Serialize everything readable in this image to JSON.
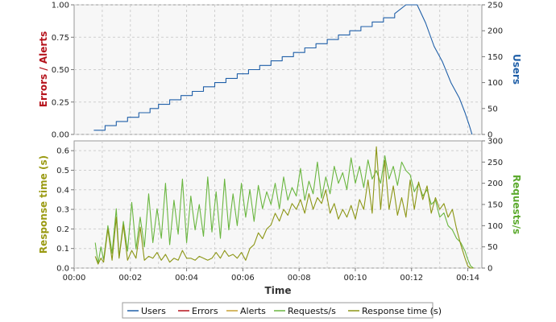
{
  "colors": {
    "users": "#1f5fa8",
    "errors": "#b5121b",
    "alerts": "#c8a032",
    "requests": "#6ab640",
    "response_time": "#8c9616",
    "grid": "#cfcfcf",
    "plot_bg": "#f7f7f7",
    "axis_title_errors": "#b5121b",
    "axis_title_users": "#1f5fa8",
    "axis_title_response": "#9a9a12",
    "axis_title_requests": "#5caa2e"
  },
  "chart_data": [
    {
      "type": "line",
      "panel": "top",
      "left_axis": {
        "label": "Errors / Alerts",
        "ylim": [
          0,
          1.0
        ],
        "ticks": [
          "0.00",
          "0.25",
          "0.50",
          "0.75",
          "1.00"
        ]
      },
      "right_axis": {
        "label": "Users",
        "ylim": [
          0,
          250
        ],
        "ticks": [
          "0",
          "50",
          "100",
          "150",
          "200",
          "250"
        ]
      },
      "x_range_minutes": [
        0,
        14.5
      ],
      "grid": true,
      "series": [
        {
          "name": "Users",
          "axis": "right",
          "x": [
            0.7,
            1.1,
            1.1,
            1.5,
            1.5,
            1.9,
            1.9,
            2.3,
            2.3,
            2.7,
            2.7,
            3.0,
            3.0,
            3.4,
            3.4,
            3.8,
            3.8,
            4.2,
            4.2,
            4.6,
            4.6,
            5.0,
            5.0,
            5.4,
            5.4,
            5.8,
            5.8,
            6.2,
            6.2,
            6.6,
            6.6,
            7.0,
            7.0,
            7.4,
            7.4,
            7.8,
            7.8,
            8.2,
            8.2,
            8.6,
            8.6,
            9.0,
            9.0,
            9.4,
            9.4,
            9.8,
            9.8,
            10.2,
            10.2,
            10.6,
            10.6,
            11.0,
            11.0,
            11.4,
            11.4,
            11.8,
            12.2,
            12.5,
            12.8,
            13.1,
            13.4,
            13.7,
            13.9,
            14.05,
            14.15
          ],
          "values": [
            8,
            8,
            17,
            17,
            25,
            25,
            33,
            33,
            42,
            42,
            50,
            50,
            58,
            58,
            67,
            67,
            75,
            75,
            83,
            83,
            92,
            92,
            100,
            100,
            108,
            108,
            117,
            117,
            125,
            125,
            133,
            133,
            142,
            142,
            150,
            150,
            158,
            158,
            167,
            167,
            175,
            175,
            183,
            183,
            192,
            192,
            200,
            200,
            208,
            208,
            217,
            217,
            225,
            225,
            233,
            250,
            250,
            215,
            170,
            140,
            100,
            70,
            42,
            18,
            0
          ]
        },
        {
          "name": "Errors",
          "axis": "left",
          "x": [],
          "values": []
        },
        {
          "name": "Alerts",
          "axis": "left",
          "x": [],
          "values": []
        }
      ]
    },
    {
      "type": "line",
      "panel": "bottom",
      "left_axis": {
        "label": "Response time (s)",
        "ylim": [
          0,
          0.65
        ],
        "ticks": [
          "0.0",
          "0.1",
          "0.2",
          "0.3",
          "0.4",
          "0.5",
          "0.6"
        ]
      },
      "right_axis": {
        "label": "Requests/s",
        "ylim": [
          0,
          300
        ],
        "ticks": [
          "0",
          "50",
          "100",
          "150",
          "200",
          "250",
          "300"
        ]
      },
      "x_label": "Time",
      "x_ticks": [
        "00:00",
        "00:02",
        "00:04",
        "00:06",
        "00:08",
        "00:10",
        "00:12",
        "00:14"
      ],
      "x_range_minutes": [
        0,
        14.5
      ],
      "grid": true,
      "series": [
        {
          "name": "Requests/s",
          "axis": "right",
          "x": [
            0.75,
            0.85,
            0.95,
            1.05,
            1.2,
            1.35,
            1.5,
            1.6,
            1.75,
            1.9,
            2.05,
            2.2,
            2.35,
            2.5,
            2.65,
            2.8,
            2.95,
            3.1,
            3.25,
            3.4,
            3.55,
            3.7,
            3.85,
            4.0,
            4.15,
            4.3,
            4.45,
            4.6,
            4.75,
            4.9,
            5.05,
            5.2,
            5.35,
            5.5,
            5.65,
            5.8,
            5.95,
            6.1,
            6.25,
            6.4,
            6.55,
            6.7,
            6.85,
            7.0,
            7.15,
            7.3,
            7.45,
            7.6,
            7.75,
            7.9,
            8.05,
            8.2,
            8.35,
            8.5,
            8.65,
            8.8,
            8.95,
            9.1,
            9.25,
            9.4,
            9.55,
            9.7,
            9.85,
            10.0,
            10.15,
            10.3,
            10.45,
            10.6,
            10.75,
            10.9,
            11.05,
            11.2,
            11.35,
            11.5,
            11.65,
            11.8,
            11.95,
            12.1,
            12.25,
            12.4,
            12.55,
            12.7,
            12.85,
            13.0,
            13.15,
            13.3,
            13.45,
            13.6,
            13.75,
            13.9,
            14.0,
            14.1,
            14.2
          ],
          "values": [
            60,
            10,
            50,
            20,
            100,
            35,
            140,
            25,
            110,
            40,
            155,
            45,
            120,
            50,
            175,
            60,
            140,
            70,
            200,
            55,
            160,
            80,
            210,
            60,
            170,
            90,
            150,
            75,
            215,
            85,
            180,
            70,
            210,
            90,
            175,
            100,
            200,
            120,
            185,
            110,
            195,
            140,
            180,
            150,
            200,
            140,
            215,
            160,
            190,
            170,
            235,
            160,
            205,
            175,
            250,
            165,
            215,
            175,
            240,
            200,
            225,
            185,
            260,
            200,
            240,
            190,
            255,
            210,
            230,
            200,
            265,
            210,
            240,
            195,
            250,
            230,
            220,
            180,
            200,
            170,
            185,
            150,
            160,
            120,
            130,
            100,
            90,
            70,
            60,
            40,
            20,
            5,
            0
          ]
        },
        {
          "name": "Response time (s)",
          "axis": "left",
          "x": [
            0.75,
            0.85,
            0.95,
            1.05,
            1.2,
            1.35,
            1.5,
            1.6,
            1.75,
            1.9,
            2.05,
            2.2,
            2.35,
            2.5,
            2.65,
            2.8,
            2.95,
            3.1,
            3.25,
            3.4,
            3.55,
            3.7,
            3.85,
            4.0,
            4.15,
            4.3,
            4.45,
            4.6,
            4.75,
            4.9,
            5.05,
            5.2,
            5.35,
            5.5,
            5.65,
            5.8,
            5.95,
            6.1,
            6.25,
            6.4,
            6.55,
            6.7,
            6.85,
            7.0,
            7.15,
            7.3,
            7.45,
            7.6,
            7.75,
            7.9,
            8.05,
            8.2,
            8.35,
            8.5,
            8.65,
            8.8,
            8.95,
            9.1,
            9.25,
            9.4,
            9.55,
            9.7,
            9.85,
            10.0,
            10.15,
            10.3,
            10.45,
            10.6,
            10.75,
            10.9,
            11.05,
            11.2,
            11.35,
            11.5,
            11.65,
            11.8,
            11.95,
            12.1,
            12.25,
            12.4,
            12.55,
            12.7,
            12.85,
            13.0,
            13.15,
            13.3,
            13.45,
            13.6,
            13.75,
            13.9,
            14.0,
            14.1,
            14.2
          ],
          "values": [
            0.06,
            0.02,
            0.05,
            0.03,
            0.2,
            0.04,
            0.26,
            0.05,
            0.22,
            0.04,
            0.09,
            0.05,
            0.21,
            0.04,
            0.06,
            0.05,
            0.08,
            0.04,
            0.07,
            0.03,
            0.05,
            0.04,
            0.09,
            0.05,
            0.05,
            0.04,
            0.06,
            0.05,
            0.04,
            0.05,
            0.08,
            0.05,
            0.09,
            0.06,
            0.07,
            0.05,
            0.08,
            0.04,
            0.1,
            0.12,
            0.18,
            0.15,
            0.2,
            0.22,
            0.28,
            0.24,
            0.3,
            0.27,
            0.33,
            0.3,
            0.35,
            0.28,
            0.38,
            0.3,
            0.36,
            0.33,
            0.4,
            0.28,
            0.33,
            0.25,
            0.3,
            0.26,
            0.32,
            0.25,
            0.35,
            0.3,
            0.45,
            0.28,
            0.62,
            0.3,
            0.55,
            0.3,
            0.42,
            0.27,
            0.36,
            0.26,
            0.45,
            0.3,
            0.44,
            0.35,
            0.42,
            0.28,
            0.36,
            0.3,
            0.33,
            0.26,
            0.3,
            0.2,
            0.12,
            0.05,
            0.01,
            0.0,
            0.0
          ]
        }
      ]
    }
  ],
  "legend": {
    "items": [
      {
        "label": "Users",
        "color": "#1f5fa8"
      },
      {
        "label": "Errors",
        "color": "#b5121b"
      },
      {
        "label": "Alerts",
        "color": "#c8a032"
      },
      {
        "label": "Requests/s",
        "color": "#6ab640"
      },
      {
        "label": "Response time (s)",
        "color": "#8c9616"
      }
    ]
  }
}
